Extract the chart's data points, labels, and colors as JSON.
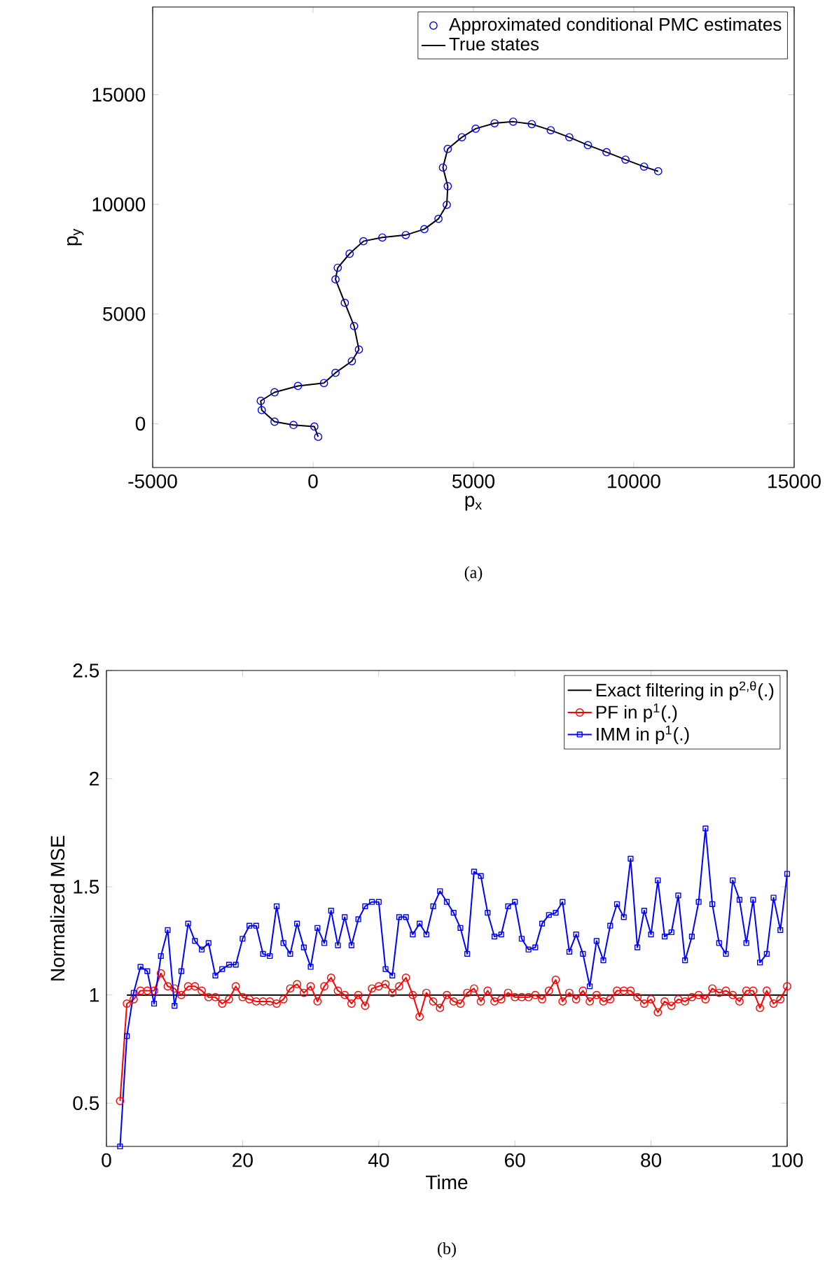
{
  "chart_data": [
    {
      "type": "line",
      "xlabel": "p$_{x}$",
      "ylabel": "p$_{y}$",
      "xlim": [
        -5000,
        15000
      ],
      "ylim": [
        -2000,
        19000
      ],
      "xticks": [
        -5000,
        0,
        5000,
        10000,
        15000
      ],
      "yticks": [
        0,
        5000,
        10000,
        15000
      ],
      "legend": "top right",
      "annotations": [
        "(a)"
      ],
      "series": [
        {
          "name": "Approximated conditional PMC estimates",
          "type": "scatter",
          "marker": "circle",
          "color": "#0000ff",
          "x": [
            160,
            40,
            -610,
            -1200,
            -1600,
            -1630,
            -1200,
            -470,
            340,
            700,
            1210,
            1430,
            1280,
            990,
            700,
            770,
            1140,
            1570,
            2160,
            2890,
            3470,
            3910,
            4170,
            4200,
            4050,
            4200,
            4640,
            5070,
            5660,
            6240,
            6820,
            7410,
            7990,
            8570,
            9150,
            9740,
            10320,
            10760
          ],
          "values": [
            -600,
            -130,
            -60,
            90,
            620,
            1040,
            1430,
            1720,
            1850,
            2320,
            2850,
            3380,
            4450,
            5510,
            6580,
            7110,
            7750,
            8320,
            8490,
            8600,
            8870,
            9340,
            9980,
            10830,
            11680,
            12530,
            13060,
            13450,
            13700,
            13770,
            13660,
            13380,
            13060,
            12700,
            12380,
            12040,
            11720,
            11510
          ]
        },
        {
          "name": "True states",
          "marker": "none",
          "color": "#000000",
          "x": [
            160,
            40,
            -610,
            -1200,
            -1600,
            -1630,
            -1200,
            -470,
            340,
            700,
            1210,
            1430,
            1280,
            990,
            700,
            770,
            1140,
            1570,
            2160,
            2890,
            3470,
            3910,
            4170,
            4200,
            4050,
            4200,
            4640,
            5070,
            5660,
            6240,
            6820,
            7410,
            7990,
            8570,
            9150,
            9740,
            10320,
            10760
          ],
          "values": [
            -600,
            -130,
            -60,
            90,
            620,
            1040,
            1430,
            1720,
            1850,
            2320,
            2850,
            3380,
            4450,
            5510,
            6580,
            7110,
            7750,
            8320,
            8490,
            8600,
            8870,
            9340,
            9980,
            10830,
            11680,
            12530,
            13060,
            13450,
            13700,
            13770,
            13660,
            13380,
            13060,
            12700,
            12380,
            12040,
            11720,
            11510
          ]
        }
      ]
    },
    {
      "type": "line",
      "xlabel": "Time",
      "ylabel": "Normalized MSE",
      "xlim": [
        0,
        100
      ],
      "ylim": [
        0.3,
        2.5
      ],
      "xticks": [
        0,
        20,
        40,
        60,
        80,
        100
      ],
      "yticks": [
        0.5,
        1,
        1.5,
        2,
        2.5
      ],
      "legend": "top right",
      "annotations": [
        "(b)"
      ],
      "series": [
        {
          "name": "Exact filtering in p$^{2,θ}$(.)",
          "marker": "none",
          "color": "#000000",
          "x": [
            3,
            100
          ],
          "values": [
            1,
            1
          ]
        },
        {
          "name": "PF in p$^{1}$(.)",
          "marker": "circle",
          "color": "#ff0000",
          "x": [
            2,
            3,
            4,
            5,
            6,
            7,
            8,
            9,
            10,
            11,
            12,
            13,
            14,
            15,
            16,
            17,
            18,
            19,
            20,
            21,
            22,
            23,
            24,
            25,
            26,
            27,
            28,
            29,
            30,
            31,
            32,
            33,
            34,
            35,
            36,
            37,
            38,
            39,
            40,
            41,
            42,
            43,
            44,
            45,
            46,
            47,
            48,
            49,
            50,
            51,
            52,
            53,
            54,
            55,
            56,
            57,
            58,
            59,
            60,
            61,
            62,
            63,
            64,
            65,
            66,
            67,
            68,
            69,
            70,
            71,
            72,
            73,
            74,
            75,
            76,
            77,
            78,
            79,
            80,
            81,
            82,
            83,
            84,
            85,
            86,
            87,
            88,
            89,
            90,
            91,
            92,
            93,
            94,
            95,
            96,
            97,
            98,
            99,
            100
          ],
          "values": [
            0.51,
            0.96,
            0.98,
            1.02,
            1.02,
            1.02,
            1.1,
            1.04,
            1.03,
            1.0,
            1.04,
            1.04,
            1.02,
            0.99,
            0.99,
            0.96,
            0.98,
            1.04,
            0.99,
            0.98,
            0.97,
            0.97,
            0.97,
            0.96,
            0.98,
            1.03,
            1.05,
            1.01,
            1.04,
            0.97,
            1.04,
            1.08,
            1.02,
            1.0,
            0.96,
            1.0,
            0.95,
            1.03,
            1.04,
            1.05,
            1.01,
            1.04,
            1.08,
            1.0,
            0.9,
            1.01,
            0.97,
            0.94,
            1.0,
            0.97,
            0.96,
            1.01,
            1.03,
            0.97,
            1.02,
            0.97,
            0.98,
            1.01,
            0.99,
            0.99,
            0.99,
            1.0,
            0.98,
            1.02,
            1.07,
            0.97,
            1.01,
            0.98,
            1.02,
            0.97,
            1.0,
            0.97,
            0.98,
            1.02,
            1.02,
            1.02,
            0.99,
            0.96,
            0.98,
            0.92,
            0.97,
            0.95,
            0.98,
            0.97,
            0.99,
            1.0,
            0.98,
            1.03,
            1.01,
            1.02,
            1.0,
            0.97,
            1.02,
            1.02,
            0.94,
            1.02,
            0.96,
            0.98,
            1.04
          ]
        },
        {
          "name": "IMM in p$^{1}$(.)",
          "marker": "square",
          "color": "#0000ff",
          "x": [
            2,
            3,
            4,
            5,
            6,
            7,
            8,
            9,
            10,
            11,
            12,
            13,
            14,
            15,
            16,
            17,
            18,
            19,
            20,
            21,
            22,
            23,
            24,
            25,
            26,
            27,
            28,
            29,
            30,
            31,
            32,
            33,
            34,
            35,
            36,
            37,
            38,
            39,
            40,
            41,
            42,
            43,
            44,
            45,
            46,
            47,
            48,
            49,
            50,
            51,
            52,
            53,
            54,
            55,
            56,
            57,
            58,
            59,
            60,
            61,
            62,
            63,
            64,
            65,
            66,
            67,
            68,
            69,
            70,
            71,
            72,
            73,
            74,
            75,
            76,
            77,
            78,
            79,
            80,
            81,
            82,
            83,
            84,
            85,
            86,
            87,
            88,
            89,
            90,
            91,
            92,
            93,
            94,
            95,
            96,
            97,
            98,
            99,
            100
          ],
          "values": [
            0.3,
            0.81,
            1.01,
            1.13,
            1.11,
            0.96,
            1.18,
            1.3,
            0.95,
            1.11,
            1.33,
            1.25,
            1.21,
            1.24,
            1.09,
            1.12,
            1.14,
            1.14,
            1.26,
            1.32,
            1.32,
            1.19,
            1.18,
            1.41,
            1.24,
            1.19,
            1.33,
            1.22,
            1.13,
            1.31,
            1.24,
            1.39,
            1.23,
            1.36,
            1.23,
            1.35,
            1.41,
            1.43,
            1.43,
            1.12,
            1.09,
            1.36,
            1.36,
            1.28,
            1.33,
            1.28,
            1.41,
            1.48,
            1.43,
            1.38,
            1.31,
            1.19,
            1.57,
            1.55,
            1.38,
            1.27,
            1.28,
            1.41,
            1.43,
            1.26,
            1.21,
            1.22,
            1.33,
            1.37,
            1.38,
            1.43,
            1.2,
            1.28,
            1.19,
            1.04,
            1.25,
            1.16,
            1.32,
            1.42,
            1.36,
            1.63,
            1.22,
            1.39,
            1.28,
            1.53,
            1.27,
            1.29,
            1.46,
            1.16,
            1.27,
            1.43,
            1.77,
            1.42,
            1.24,
            1.19,
            1.53,
            1.44,
            1.24,
            1.44,
            1.15,
            1.19,
            1.45,
            1.3,
            1.56
          ]
        }
      ]
    }
  ]
}
